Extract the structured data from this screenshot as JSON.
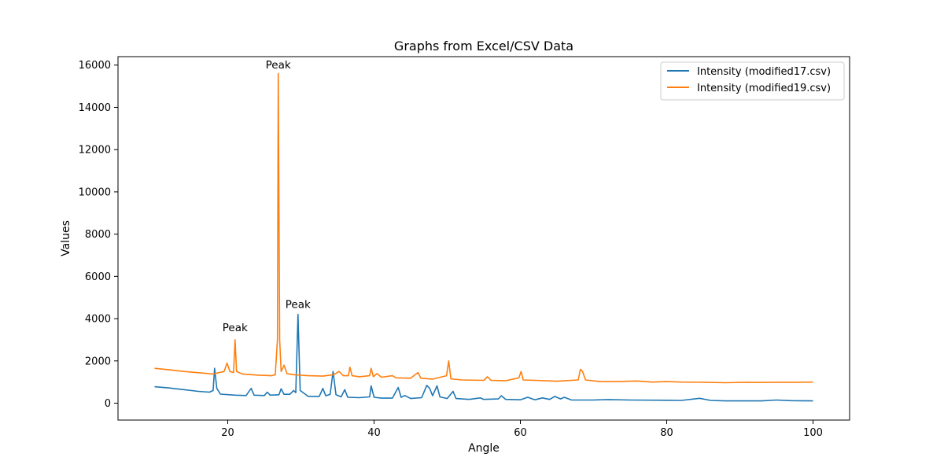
{
  "chart_data": {
    "type": "line",
    "title": "Graphs from Excel/CSV Data",
    "xlabel": "Angle",
    "ylabel": "Values",
    "xlim": [
      5,
      105
    ],
    "ylim": [
      -800,
      16400
    ],
    "xticks": [
      20,
      40,
      60,
      80,
      100
    ],
    "yticks": [
      0,
      2000,
      4000,
      6000,
      8000,
      10000,
      12000,
      14000,
      16000
    ],
    "grid": false,
    "legend_position": "top-right",
    "series": [
      {
        "name": "Intensity (modified17.csv)",
        "color": "#1f77b4",
        "points": [
          [
            10,
            780
          ],
          [
            12,
            720
          ],
          [
            14,
            640
          ],
          [
            16,
            560
          ],
          [
            17.5,
            520
          ],
          [
            18.0,
            600
          ],
          [
            18.2,
            1650
          ],
          [
            18.5,
            700
          ],
          [
            19,
            430
          ],
          [
            21,
            380
          ],
          [
            22.5,
            360
          ],
          [
            23.2,
            700
          ],
          [
            23.6,
            380
          ],
          [
            25,
            360
          ],
          [
            25.4,
            520
          ],
          [
            25.8,
            380
          ],
          [
            27.0,
            400
          ],
          [
            27.3,
            680
          ],
          [
            27.7,
            420
          ],
          [
            28.5,
            420
          ],
          [
            29.0,
            600
          ],
          [
            29.3,
            500
          ],
          [
            29.6,
            4200
          ],
          [
            29.9,
            600
          ],
          [
            31,
            320
          ],
          [
            32.5,
            320
          ],
          [
            33.0,
            700
          ],
          [
            33.4,
            350
          ],
          [
            34.0,
            420
          ],
          [
            34.4,
            1500
          ],
          [
            34.8,
            400
          ],
          [
            35.5,
            300
          ],
          [
            36.0,
            640
          ],
          [
            36.4,
            280
          ],
          [
            38,
            260
          ],
          [
            39.4,
            300
          ],
          [
            39.6,
            820
          ],
          [
            40.0,
            280
          ],
          [
            41,
            240
          ],
          [
            42.5,
            240
          ],
          [
            43.3,
            740
          ],
          [
            43.7,
            280
          ],
          [
            44.2,
            360
          ],
          [
            45,
            220
          ],
          [
            46.5,
            260
          ],
          [
            47.2,
            840
          ],
          [
            47.6,
            700
          ],
          [
            48.0,
            350
          ],
          [
            48.6,
            820
          ],
          [
            49.0,
            300
          ],
          [
            50,
            220
          ],
          [
            50.8,
            560
          ],
          [
            51.2,
            220
          ],
          [
            53,
            180
          ],
          [
            54.5,
            250
          ],
          [
            55,
            180
          ],
          [
            57,
            200
          ],
          [
            57.4,
            350
          ],
          [
            58,
            180
          ],
          [
            60,
            160
          ],
          [
            61,
            280
          ],
          [
            62,
            160
          ],
          [
            63,
            250
          ],
          [
            64,
            180
          ],
          [
            64.7,
            320
          ],
          [
            65.5,
            200
          ],
          [
            66,
            280
          ],
          [
            67,
            150
          ],
          [
            70,
            150
          ],
          [
            72,
            170
          ],
          [
            75,
            150
          ],
          [
            80,
            140
          ],
          [
            82,
            130
          ],
          [
            84.5,
            230
          ],
          [
            86,
            130
          ],
          [
            88,
            110
          ],
          [
            90,
            110
          ],
          [
            93,
            110
          ],
          [
            95,
            150
          ],
          [
            97,
            120
          ],
          [
            100,
            110
          ]
        ]
      },
      {
        "name": "Intensity (modified19.csv)",
        "color": "#ff7f0e",
        "points": [
          [
            10,
            1650
          ],
          [
            12,
            1580
          ],
          [
            14,
            1500
          ],
          [
            16,
            1440
          ],
          [
            18,
            1380
          ],
          [
            19.5,
            1500
          ],
          [
            19.9,
            1900
          ],
          [
            20.3,
            1500
          ],
          [
            20.8,
            1450
          ],
          [
            21.0,
            3000
          ],
          [
            21.2,
            1500
          ],
          [
            22,
            1380
          ],
          [
            24,
            1330
          ],
          [
            26,
            1300
          ],
          [
            26.5,
            1350
          ],
          [
            26.8,
            3000
          ],
          [
            26.9,
            15600
          ],
          [
            27.1,
            3000
          ],
          [
            27.3,
            1500
          ],
          [
            27.7,
            1800
          ],
          [
            28.1,
            1400
          ],
          [
            29,
            1350
          ],
          [
            31,
            1300
          ],
          [
            33,
            1280
          ],
          [
            34.5,
            1350
          ],
          [
            35.2,
            1500
          ],
          [
            35.8,
            1300
          ],
          [
            36.5,
            1300
          ],
          [
            36.7,
            1700
          ],
          [
            37.0,
            1300
          ],
          [
            38,
            1250
          ],
          [
            39.4,
            1300
          ],
          [
            39.6,
            1650
          ],
          [
            39.9,
            1250
          ],
          [
            40.4,
            1400
          ],
          [
            41,
            1230
          ],
          [
            42.5,
            1300
          ],
          [
            43,
            1200
          ],
          [
            45,
            1180
          ],
          [
            46.0,
            1450
          ],
          [
            46.4,
            1180
          ],
          [
            48,
            1140
          ],
          [
            49.9,
            1300
          ],
          [
            50.2,
            2000
          ],
          [
            50.5,
            1150
          ],
          [
            52,
            1100
          ],
          [
            55,
            1080
          ],
          [
            55.5,
            1250
          ],
          [
            56,
            1080
          ],
          [
            58,
            1060
          ],
          [
            59.8,
            1200
          ],
          [
            60.1,
            1500
          ],
          [
            60.4,
            1100
          ],
          [
            62,
            1080
          ],
          [
            65,
            1040
          ],
          [
            67.9,
            1100
          ],
          [
            68.2,
            1600
          ],
          [
            68.5,
            1500
          ],
          [
            68.9,
            1100
          ],
          [
            71,
            1020
          ],
          [
            74,
            1030
          ],
          [
            76,
            1050
          ],
          [
            78,
            1000
          ],
          [
            80,
            1020
          ],
          [
            82,
            1000
          ],
          [
            85,
            990
          ],
          [
            88,
            970
          ],
          [
            91,
            990
          ],
          [
            92,
            980
          ],
          [
            95,
            990
          ],
          [
            98,
            990
          ],
          [
            100,
            1000
          ]
        ]
      }
    ],
    "annotations": [
      {
        "text": "Peak",
        "x": 21.0,
        "y": 3400
      },
      {
        "text": "Peak",
        "x": 26.9,
        "y": 15850
      },
      {
        "text": "Peak",
        "x": 29.6,
        "y": 4500
      }
    ]
  }
}
